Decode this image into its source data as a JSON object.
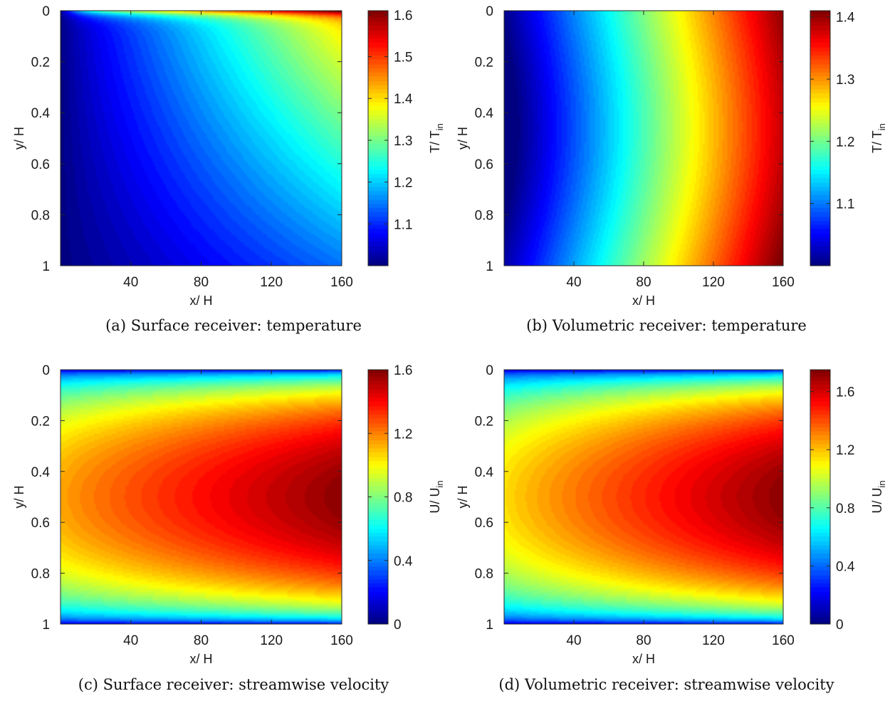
{
  "chart_data": [
    {
      "type": "heatmap",
      "caption": "(a) Surface receiver: temperature",
      "field": "temperature",
      "receiver": "surface",
      "colormap": "jet",
      "xlabel": "x/ H",
      "ylabel": "y/ H",
      "x_range": [
        0,
        160
      ],
      "y_range": [
        0,
        1
      ],
      "y_reversed": true,
      "xticks": [
        40,
        80,
        120,
        160
      ],
      "yticks": [
        0,
        0.2,
        0.4,
        0.6,
        0.8,
        1
      ],
      "ytick_labels": [
        "0",
        "0.2",
        "0.4",
        "0.6",
        "0.8",
        "1"
      ],
      "colorbar": {
        "label_main": "T/ T",
        "label_sub": "in",
        "range": [
          1.0,
          1.61
        ],
        "ticks": [
          1.1,
          1.2,
          1.3,
          1.4,
          1.5,
          1.6
        ],
        "tick_labels": [
          "1.1",
          "1.2",
          "1.3",
          "1.4",
          "1.5",
          "1.6"
        ]
      }
    },
    {
      "type": "heatmap",
      "caption": "(b) Volumetric receiver: temperature",
      "field": "temperature",
      "receiver": "volumetric",
      "colormap": "jet",
      "xlabel": "x/ H",
      "ylabel": "y/ H",
      "x_range": [
        0,
        160
      ],
      "y_range": [
        0,
        1
      ],
      "y_reversed": true,
      "xticks": [
        40,
        80,
        120,
        160
      ],
      "yticks": [
        0,
        0.2,
        0.4,
        0.6,
        0.8,
        1
      ],
      "ytick_labels": [
        "0",
        "0.2",
        "0.4",
        "0.6",
        "0.8",
        "1"
      ],
      "colorbar": {
        "label_main": "T/ T",
        "label_sub": "in",
        "range": [
          1.0,
          1.41
        ],
        "ticks": [
          1.1,
          1.2,
          1.3,
          1.4
        ],
        "tick_labels": [
          "1.1",
          "1.2",
          "1.3",
          "1.4"
        ]
      }
    },
    {
      "type": "heatmap",
      "caption": "(c) Surface receiver: streamwise velocity",
      "field": "streamwise velocity",
      "receiver": "surface",
      "colormap": "jet",
      "xlabel": "x/ H",
      "ylabel": "y/ H",
      "x_range": [
        0,
        160
      ],
      "y_range": [
        0,
        1
      ],
      "y_reversed": true,
      "xticks": [
        40,
        80,
        120,
        160
      ],
      "yticks": [
        0,
        0.2,
        0.4,
        0.6,
        0.8,
        1
      ],
      "ytick_labels": [
        "0",
        "0.2",
        "0.4",
        "0.6",
        "0.8",
        "1"
      ],
      "colorbar": {
        "label_main": "U/ U",
        "label_sub": "in",
        "range": [
          0,
          1.6
        ],
        "ticks": [
          0,
          0.4,
          0.8,
          1.2,
          1.6
        ],
        "tick_labels": [
          "0",
          "0.4",
          "0.8",
          "1.2",
          "1.6"
        ]
      }
    },
    {
      "type": "heatmap",
      "caption": "(d) Volumetric receiver: streamwise velocity",
      "field": "streamwise velocity",
      "receiver": "volumetric",
      "colormap": "jet",
      "xlabel": "x/ H",
      "ylabel": "y/ H",
      "x_range": [
        0,
        160
      ],
      "y_range": [
        0,
        1
      ],
      "y_reversed": true,
      "xticks": [
        40,
        80,
        120,
        160
      ],
      "yticks": [
        0,
        0.2,
        0.4,
        0.6,
        0.8,
        1
      ],
      "ytick_labels": [
        "0",
        "0.2",
        "0.4",
        "0.6",
        "0.8",
        "1"
      ],
      "colorbar": {
        "label_main": "U/ U",
        "label_sub": "in",
        "range": [
          0,
          1.75
        ],
        "ticks": [
          0,
          0.4,
          0.8,
          1.2,
          1.6
        ],
        "tick_labels": [
          "0",
          "0.4",
          "0.8",
          "1.2",
          "1.6"
        ]
      }
    }
  ]
}
